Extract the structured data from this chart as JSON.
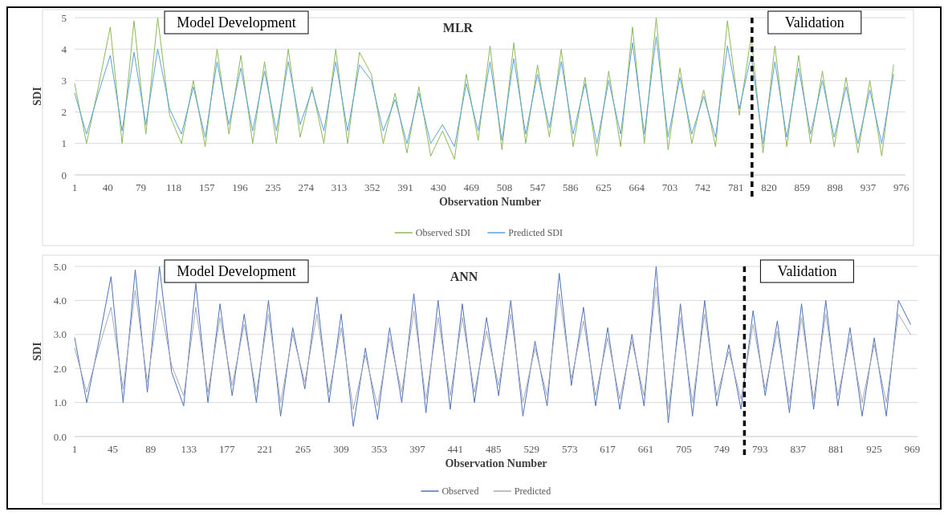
{
  "chart_data": [
    {
      "type": "line",
      "title": "MLR",
      "xlabel": "Observation Number",
      "ylabel": "SDI",
      "xlim": [
        1,
        981
      ],
      "xticks": [
        1,
        40,
        79,
        118,
        157,
        196,
        235,
        274,
        313,
        352,
        391,
        430,
        469,
        508,
        547,
        586,
        625,
        664,
        703,
        742,
        781,
        820,
        859,
        898,
        937,
        976
      ],
      "ylim": [
        0,
        5
      ],
      "yticks": [
        0,
        1,
        2,
        3,
        4,
        5
      ],
      "grid": "y",
      "legend": "bottom",
      "marker": "none",
      "x": [
        1,
        15,
        29,
        43,
        57,
        71,
        85,
        99,
        113,
        127,
        141,
        155,
        169,
        183,
        197,
        211,
        225,
        239,
        253,
        267,
        281,
        295,
        309,
        323,
        337,
        351,
        365,
        379,
        393,
        407,
        421,
        435,
        449,
        463,
        477,
        491,
        505,
        519,
        533,
        547,
        561,
        575,
        589,
        603,
        617,
        631,
        645,
        659,
        673,
        687,
        701,
        715,
        729,
        743,
        757,
        771,
        785,
        799,
        813,
        827,
        841,
        855,
        869,
        883,
        897,
        911,
        925,
        939,
        953,
        967
      ],
      "series": [
        {
          "name": "Observed SDI",
          "color": "#8db85a",
          "values": [
            2.9,
            1.0,
            2.8,
            4.7,
            1.0,
            4.9,
            1.3,
            5.0,
            1.9,
            1.0,
            3.0,
            0.9,
            4.0,
            1.3,
            3.8,
            1.0,
            3.6,
            1.0,
            4.0,
            1.2,
            2.8,
            1.0,
            4.0,
            1.0,
            3.9,
            3.2,
            1.0,
            2.6,
            0.7,
            2.8,
            0.6,
            1.4,
            0.5,
            3.2,
            1.1,
            4.1,
            0.8,
            4.2,
            1.0,
            3.5,
            1.2,
            4.0,
            0.9,
            3.1,
            0.6,
            3.3,
            0.9,
            4.7,
            1.0,
            5.0,
            0.8,
            3.4,
            1.0,
            2.7,
            0.9,
            4.9,
            1.9,
            4.4,
            0.7,
            4.1,
            0.9,
            3.8,
            1.0,
            3.3,
            0.9,
            3.1,
            0.7,
            3.0,
            0.6,
            3.5
          ]
        },
        {
          "name": "Predicted SDI",
          "color": "#5ba3d9",
          "values": [
            2.6,
            1.3,
            2.6,
            3.8,
            1.4,
            3.9,
            1.6,
            4.0,
            2.1,
            1.3,
            2.8,
            1.2,
            3.6,
            1.6,
            3.4,
            1.4,
            3.3,
            1.4,
            3.6,
            1.6,
            2.7,
            1.4,
            3.6,
            1.4,
            3.5,
            3.0,
            1.4,
            2.4,
            1.0,
            2.6,
            1.0,
            1.6,
            0.9,
            2.9,
            1.4,
            3.6,
            1.1,
            3.7,
            1.3,
            3.2,
            1.5,
            3.6,
            1.3,
            2.9,
            1.0,
            3.0,
            1.3,
            4.2,
            1.3,
            4.4,
            1.2,
            3.1,
            1.3,
            2.5,
            1.2,
            4.1,
            2.1,
            3.8,
            1.0,
            3.6,
            1.2,
            3.4,
            1.3,
            3.0,
            1.2,
            2.8,
            1.0,
            2.7,
            1.0,
            3.2
          ]
        }
      ],
      "ref_lines": [
        {
          "axis": "x",
          "value": 800,
          "color": "#000000",
          "line_style": "dashed"
        }
      ],
      "annotations": [
        "Model Development",
        "Validation"
      ]
    },
    {
      "type": "line",
      "title": "ANN",
      "xlabel": "Observation Number",
      "ylabel": "SDI",
      "xlim": [
        1,
        975
      ],
      "xticks": [
        1,
        45,
        89,
        133,
        177,
        221,
        265,
        309,
        353,
        397,
        441,
        485,
        529,
        573,
        617,
        661,
        705,
        749,
        793,
        837,
        881,
        925,
        969
      ],
      "ylim": [
        0,
        5
      ],
      "yticks": [
        {
          "value": 0,
          "label": "0.0"
        },
        {
          "value": 1,
          "label": "1.0"
        },
        {
          "value": 2,
          "label": "2.0"
        },
        {
          "value": 3,
          "label": "3.0"
        },
        {
          "value": 4,
          "label": "4.0"
        },
        {
          "value": 5,
          "label": "5.0"
        }
      ],
      "grid": "y",
      "legend": "bottom",
      "marker": "none",
      "x": [
        1,
        15,
        29,
        43,
        57,
        71,
        85,
        99,
        113,
        127,
        141,
        155,
        169,
        183,
        197,
        211,
        225,
        239,
        253,
        267,
        281,
        295,
        309,
        323,
        337,
        351,
        365,
        379,
        393,
        407,
        421,
        435,
        449,
        463,
        477,
        491,
        505,
        519,
        533,
        547,
        561,
        575,
        589,
        603,
        617,
        631,
        645,
        659,
        673,
        687,
        701,
        715,
        729,
        743,
        757,
        771,
        785,
        799,
        813,
        827,
        841,
        855,
        869,
        883,
        897,
        911,
        925,
        939,
        953,
        967
      ],
      "series": [
        {
          "name": "Observed",
          "color": "#4f72b8",
          "values": [
            2.9,
            1.0,
            2.8,
            4.7,
            1.0,
            4.9,
            1.3,
            5.0,
            1.9,
            0.9,
            4.5,
            1.0,
            3.9,
            1.2,
            3.6,
            1.0,
            4.0,
            0.6,
            3.2,
            1.4,
            4.1,
            1.0,
            3.6,
            0.3,
            2.6,
            0.5,
            3.2,
            1.0,
            4.2,
            0.7,
            4.0,
            0.8,
            3.9,
            1.0,
            3.5,
            1.2,
            4.0,
            0.6,
            2.8,
            0.9,
            4.8,
            1.5,
            3.8,
            0.9,
            3.2,
            0.8,
            3.0,
            0.9,
            5.0,
            0.4,
            3.9,
            0.6,
            4.0,
            0.9,
            2.7,
            0.8,
            3.7,
            1.2,
            3.4,
            0.7,
            3.9,
            0.8,
            4.0,
            0.9,
            3.2,
            0.6,
            2.9,
            0.6,
            4.0,
            3.3
          ]
        },
        {
          "name": "Predicted",
          "color": "#a3aab8",
          "values": [
            2.6,
            1.3,
            2.6,
            3.8,
            1.4,
            4.3,
            1.6,
            4.0,
            2.1,
            1.2,
            3.8,
            1.3,
            3.5,
            1.5,
            3.3,
            1.3,
            3.6,
            1.0,
            3.0,
            1.6,
            3.6,
            1.3,
            3.2,
            0.8,
            2.4,
            0.9,
            2.9,
            1.3,
            3.7,
            1.1,
            3.5,
            1.2,
            3.5,
            1.3,
            3.1,
            1.5,
            3.6,
            1.0,
            2.6,
            1.2,
            4.2,
            1.7,
            3.4,
            1.2,
            2.9,
            1.1,
            2.8,
            1.2,
            4.4,
            0.8,
            3.5,
            1.0,
            3.6,
            1.2,
            2.5,
            1.1,
            3.3,
            1.4,
            3.1,
            1.0,
            3.5,
            1.1,
            3.6,
            1.2,
            2.9,
            1.0,
            2.7,
            1.0,
            3.6,
            3.0
          ]
        }
      ],
      "ref_lines": [
        {
          "axis": "x",
          "value": 775,
          "color": "#000000",
          "line_style": "dashed"
        }
      ],
      "annotations": [
        "Model Development",
        "Validation"
      ]
    }
  ]
}
